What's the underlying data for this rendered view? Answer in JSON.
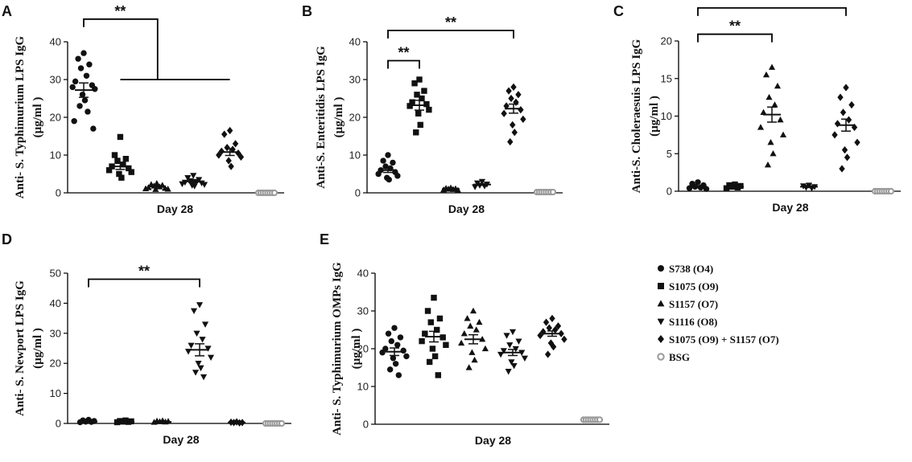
{
  "chart_data": [
    {
      "type": "scatter",
      "panel": "A",
      "ylabel_line1": "Anti- S. Typhimurium LPS IgG",
      "ylabel_line2": "(µg/ml )",
      "xlabel": "Day 28",
      "ylim": [
        0,
        40
      ],
      "yticks": [
        0,
        10,
        20,
        30,
        40
      ],
      "groups": [
        {
          "name": "S738 (O4)",
          "marker": "circle",
          "mean": 27.2,
          "sem": 1.9,
          "values": [
            37,
            35.5,
            34,
            33,
            31,
            29.5,
            28.5,
            28,
            27.5,
            26,
            24.5,
            23,
            21.5,
            19,
            17
          ]
        },
        {
          "name": "S1075 (O9)",
          "marker": "square",
          "mean": 7.0,
          "sem": 0.8,
          "values": [
            14.8,
            10,
            9,
            8.5,
            7.5,
            7,
            6.5,
            6,
            5.5,
            5,
            4
          ]
        },
        {
          "name": "S1157 (O7)",
          "marker": "triangle-up",
          "mean": 1.7,
          "sem": 0.2,
          "values": [
            2.5,
            2.2,
            2,
            1.8,
            1.6,
            1.4,
            1.2,
            1.1,
            1.0,
            0.9
          ]
        },
        {
          "name": "S1116 (O8)",
          "marker": "triangle-down",
          "mean": 3.0,
          "sem": 0.3,
          "values": [
            4.6,
            4.0,
            3.5,
            3.2,
            3.0,
            2.8,
            2.6,
            2.4,
            2.2,
            2.0,
            1.8
          ]
        },
        {
          "name": "S1075 (O9) + S1157 (O7)",
          "marker": "diamond",
          "mean": 10.8,
          "sem": 0.9,
          "values": [
            16.5,
            15.5,
            13,
            12,
            11.5,
            11,
            10.5,
            10,
            9.5,
            8.5,
            7
          ]
        },
        {
          "name": "BSG",
          "marker": "open-circle",
          "mean": 0,
          "sem": 0,
          "values": [
            0,
            0,
            0,
            0,
            0,
            0,
            0,
            0
          ]
        }
      ],
      "annotations": [
        {
          "label": "**",
          "from": 0,
          "to": 2,
          "y": 46
        },
        {
          "label": "",
          "from": 1,
          "to": 4,
          "y": 30
        }
      ]
    },
    {
      "type": "scatter",
      "panel": "B",
      "ylabel_line1": "Anti-S. Enteritidis LPS IgG",
      "ylabel_line2": "(µg/ml )",
      "xlabel": "Day 28",
      "ylim": [
        0,
        40
      ],
      "yticks": [
        0,
        10,
        20,
        30,
        40
      ],
      "groups": [
        {
          "name": "S738 (O4)",
          "marker": "circle",
          "mean": 6.0,
          "sem": 0.6,
          "values": [
            10,
            8.5,
            8,
            7,
            6.5,
            6,
            5.5,
            5,
            4.5,
            4,
            3.5
          ]
        },
        {
          "name": "S1075 (O9)",
          "marker": "square",
          "mean": 23.2,
          "sem": 1.3,
          "values": [
            30,
            29,
            27,
            26,
            25,
            24,
            23.5,
            23,
            22,
            21,
            18,
            16
          ]
        },
        {
          "name": "S1157 (O7)",
          "marker": "triangle-up",
          "mean": 1.0,
          "sem": 0.1,
          "values": [
            1.3,
            1.2,
            1.1,
            1.0,
            0.9,
            0.8,
            0.7
          ]
        },
        {
          "name": "S1116 (O8)",
          "marker": "triangle-down",
          "mean": 2.2,
          "sem": 0.2,
          "values": [
            3.0,
            2.6,
            2.3,
            2.0,
            1.8,
            1.6
          ]
        },
        {
          "name": "S1075 (O9) + S1157 (O7)",
          "marker": "diamond",
          "mean": 22.3,
          "sem": 1.2,
          "values": [
            28,
            27,
            26,
            25,
            24,
            23,
            22,
            21,
            19.5,
            18,
            16,
            13.5
          ]
        },
        {
          "name": "BSG",
          "marker": "open-circle",
          "mean": 0.2,
          "sem": 0,
          "values": [
            0.2,
            0.2,
            0.2,
            0.2,
            0.2,
            0.2,
            0.2,
            0.2
          ]
        }
      ],
      "annotations": [
        {
          "label": "**",
          "from": 0,
          "to": 1,
          "y": 35
        },
        {
          "label": "**",
          "from": 0,
          "to": 4,
          "y": 43
        }
      ]
    },
    {
      "type": "scatter",
      "panel": "C",
      "ylabel_line1": "Anti-S. Choleraesuis LPS IgG",
      "ylabel_line2": "(µg/ml )",
      "xlabel": "Day 28",
      "ylim": [
        0,
        20
      ],
      "yticks": [
        0,
        5,
        10,
        15,
        20
      ],
      "groups": [
        {
          "name": "S738 (O4)",
          "marker": "circle",
          "mean": 0.6,
          "sem": 0.1,
          "values": [
            1.2,
            1.0,
            0.8,
            0.6,
            0.5,
            0.4,
            0.3
          ]
        },
        {
          "name": "S1075 (O9)",
          "marker": "square",
          "mean": 0.6,
          "sem": 0.1,
          "values": [
            0.9,
            0.8,
            0.7,
            0.6,
            0.5,
            0.4
          ]
        },
        {
          "name": "S1157 (O7)",
          "marker": "triangle-up",
          "mean": 10.2,
          "sem": 1.0,
          "values": [
            16.5,
            15.5,
            14,
            12.5,
            11.5,
            10.5,
            9.5,
            8.5,
            7.5,
            6.5,
            5,
            3.5
          ]
        },
        {
          "name": "S1116 (O8)",
          "marker": "triangle-down",
          "mean": 0.6,
          "sem": 0.1,
          "values": [
            0.8,
            0.7,
            0.6,
            0.5,
            0.4
          ]
        },
        {
          "name": "S1075 (O9) + S1157 (O7)",
          "marker": "diamond",
          "mean": 8.8,
          "sem": 0.8,
          "values": [
            13.8,
            12.5,
            11.5,
            10.5,
            9.5,
            9,
            8.5,
            7.5,
            6.5,
            5.5,
            4.5,
            3
          ]
        },
        {
          "name": "BSG",
          "marker": "open-circle",
          "mean": 0,
          "sem": 0,
          "values": [
            0,
            0,
            0,
            0,
            0,
            0,
            0,
            0
          ]
        }
      ],
      "annotations": [
        {
          "label": "**",
          "from": 0,
          "to": 2,
          "y": 20.9
        },
        {
          "label": "**",
          "from": 0,
          "to": 4,
          "y": 24.4
        }
      ]
    },
    {
      "type": "scatter",
      "panel": "D",
      "ylabel_line1": "Anti- S. Newport LPS IgG",
      "ylabel_line2": "(µg/ml )",
      "xlabel": "Day 28",
      "ylim": [
        0,
        50
      ],
      "yticks": [
        0,
        10,
        20,
        30,
        40,
        50
      ],
      "groups": [
        {
          "name": "S738 (O4)",
          "marker": "circle",
          "mean": 0.6,
          "sem": 0.1,
          "values": [
            1.2,
            1.0,
            0.8,
            0.6,
            0.5,
            0.4
          ]
        },
        {
          "name": "S1075 (O9)",
          "marker": "square",
          "mean": 0.6,
          "sem": 0.1,
          "values": [
            1.0,
            0.8,
            0.7,
            0.6,
            0.5,
            0.4
          ]
        },
        {
          "name": "S1157 (O7)",
          "marker": "triangle-up",
          "mean": 0.5,
          "sem": 0.1,
          "values": [
            0.9,
            0.8,
            0.7,
            0.6,
            0.5,
            0.4
          ]
        },
        {
          "name": "S1116 (O8)",
          "marker": "triangle-down",
          "mean": 24.5,
          "sem": 2.0,
          "values": [
            39.5,
            37.5,
            33,
            30,
            28,
            26,
            25,
            24,
            22,
            20,
            18.5,
            17,
            15.5
          ]
        },
        {
          "name": "S1075 (O9) + S1157 (O7)",
          "marker": "diamond",
          "mean": 0.3,
          "sem": 0,
          "values": [
            0.5,
            0.4,
            0.3,
            0.3,
            0.2
          ]
        },
        {
          "name": "BSG",
          "marker": "open-circle",
          "mean": 0,
          "sem": 0,
          "values": [
            0,
            0,
            0,
            0,
            0,
            0,
            0,
            0
          ]
        }
      ],
      "annotations": [
        {
          "label": "**",
          "from": 0,
          "to": 3,
          "y": 48
        }
      ]
    },
    {
      "type": "scatter",
      "panel": "E",
      "ylabel_line1": "Anti- S. Typhimurium OMPs IgG",
      "ylabel_line2": "(µg/ml )",
      "xlabel": "Day 28",
      "ylim": [
        0,
        40
      ],
      "yticks": [
        0,
        10,
        20,
        30,
        40
      ],
      "groups": [
        {
          "name": "S738 (O4)",
          "marker": "circle",
          "mean": 19.2,
          "sem": 1.0,
          "values": [
            25.5,
            24,
            23,
            22,
            21,
            20,
            19.5,
            19,
            18,
            17.5,
            16,
            14.5,
            13
          ]
        },
        {
          "name": "S1075 (O9)",
          "marker": "square",
          "mean": 23.2,
          "sem": 1.4,
          "values": [
            33.5,
            30,
            28,
            27,
            25,
            24,
            23,
            22,
            21,
            20,
            18,
            16.5,
            13
          ]
        },
        {
          "name": "S1157 (O7)",
          "marker": "triangle-up",
          "mean": 22.5,
          "sem": 1.2,
          "values": [
            30,
            28,
            27,
            26,
            25,
            24,
            22.5,
            21.5,
            20,
            19,
            17,
            15
          ]
        },
        {
          "name": "S1116 (O8)",
          "marker": "triangle-down",
          "mean": 19.0,
          "sem": 0.8,
          "values": [
            24.5,
            23.5,
            22,
            21,
            20,
            19.5,
            19,
            18.5,
            17.5,
            16.5,
            15.5,
            14
          ]
        },
        {
          "name": "S1075 (O9) + S1157 (O7)",
          "marker": "diamond",
          "mean": 24.0,
          "sem": 0.7,
          "values": [
            28,
            27,
            26,
            25.5,
            25,
            24.5,
            24,
            23.5,
            22.5,
            21.5,
            20.5,
            18.5
          ]
        },
        {
          "name": "BSG",
          "marker": "open-circle",
          "mean": 1.2,
          "sem": 0,
          "values": [
            1.2,
            1.2,
            1.2,
            1.2,
            1.2,
            1.2,
            1.2,
            1.2
          ]
        }
      ],
      "annotations": []
    }
  ],
  "legend": {
    "items": [
      {
        "name": "S738 (O4)",
        "marker": "circle"
      },
      {
        "name": "S1075 (O9)",
        "marker": "square"
      },
      {
        "name": "S1157 (O7)",
        "marker": "triangle-up"
      },
      {
        "name": "S1116 (O8)",
        "marker": "triangle-down"
      },
      {
        "name": "S1075 (O9) + S1157 (O7)",
        "marker": "diamond"
      },
      {
        "name": "BSG",
        "marker": "open-circle"
      }
    ]
  },
  "colors": {
    "marker": "#111111",
    "bsg": "#9a9a9a",
    "axis": "#000000"
  }
}
